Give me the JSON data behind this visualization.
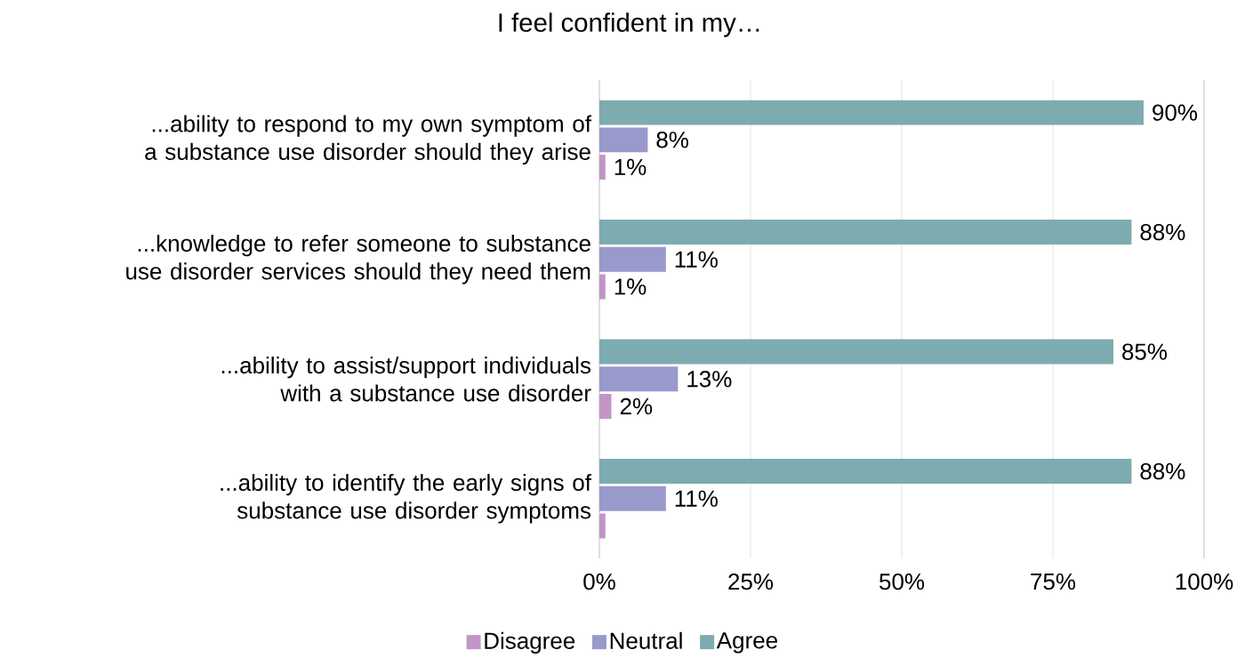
{
  "chart_data": {
    "type": "bar",
    "orientation": "horizontal",
    "title": "I feel confident in my…",
    "categories": [
      "...ability to respond to my own symptom of a substance use disorder should they arise",
      "...knowledge to refer someone to substance use disorder services should they need them",
      "...ability to assist/support individuals with a substance use disorder",
      "...ability to identify the early signs of substance use disorder symptoms"
    ],
    "series": [
      {
        "name": "Disagree",
        "color": "#c295c7",
        "values": [
          1,
          1,
          2,
          1
        ],
        "value_labels": [
          "1%",
          "1%",
          "2%",
          null
        ]
      },
      {
        "name": "Neutral",
        "color": "#9999cc",
        "values": [
          8,
          11,
          13,
          11
        ],
        "value_labels": [
          "8%",
          "11%",
          "13%",
          "11%"
        ]
      },
      {
        "name": "Agree",
        "color": "#7eabb0",
        "values": [
          90,
          88,
          85,
          88
        ],
        "value_labels": [
          "90%",
          "88%",
          "85%",
          "88%"
        ]
      }
    ],
    "xlim": [
      0,
      100
    ],
    "xticks": [
      {
        "value": 0,
        "label": "0%"
      },
      {
        "value": 25,
        "label": "25%"
      },
      {
        "value": 50,
        "label": "50%"
      },
      {
        "value": 75,
        "label": "75%"
      },
      {
        "value": 100,
        "label": "100%"
      }
    ],
    "grid": "x",
    "legend": "bottom"
  }
}
